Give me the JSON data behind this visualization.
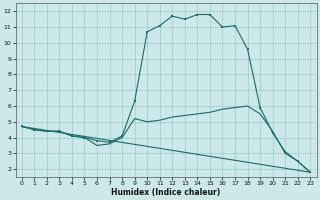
{
  "title": "",
  "xlabel": "Humidex (Indice chaleur)",
  "bg_color": "#cce8e8",
  "grid_color": "#99cccc",
  "line_color": "#1a6b6b",
  "xlim": [
    -0.5,
    23.5
  ],
  "ylim": [
    1.5,
    12.5
  ],
  "yticks": [
    2,
    3,
    4,
    5,
    6,
    7,
    8,
    9,
    10,
    11,
    12
  ],
  "xticks": [
    0,
    1,
    2,
    3,
    4,
    5,
    6,
    7,
    8,
    9,
    10,
    11,
    12,
    13,
    14,
    15,
    16,
    17,
    18,
    19,
    20,
    21,
    22,
    23
  ],
  "curve1_x": [
    0,
    1,
    2,
    3,
    4,
    5,
    6,
    7,
    8,
    9,
    10,
    11,
    12,
    13,
    14,
    15,
    16,
    17,
    18,
    19,
    20,
    21,
    22,
    23
  ],
  "curve1_y": [
    4.7,
    4.5,
    4.4,
    4.4,
    4.1,
    4.0,
    3.8,
    3.7,
    4.1,
    6.3,
    10.7,
    11.1,
    11.7,
    11.5,
    11.8,
    11.8,
    11.0,
    11.1,
    9.6,
    5.9,
    4.3,
    3.1,
    2.5,
    1.8
  ],
  "curve2_x": [
    0,
    1,
    2,
    3,
    4,
    5,
    6,
    7,
    8,
    9,
    10,
    11,
    12,
    13,
    14,
    15,
    16,
    17,
    18,
    19,
    20,
    21,
    22,
    23
  ],
  "curve2_y": [
    4.7,
    4.5,
    4.4,
    4.4,
    4.1,
    4.0,
    3.5,
    3.6,
    4.0,
    5.2,
    5.0,
    5.1,
    5.3,
    5.4,
    5.5,
    5.6,
    5.8,
    5.9,
    6.0,
    5.5,
    4.4,
    3.0,
    2.5,
    1.8
  ],
  "curve3_x": [
    0,
    23
  ],
  "curve3_y": [
    4.7,
    1.8
  ],
  "marker_x": [
    0,
    1,
    2,
    3,
    4,
    5,
    6,
    7,
    8,
    9,
    10,
    11,
    12,
    13,
    14,
    15,
    16,
    17,
    18,
    19,
    20,
    21,
    22,
    23
  ],
  "marker_y": [
    4.7,
    4.5,
    4.4,
    4.4,
    4.1,
    4.0,
    3.8,
    3.7,
    4.1,
    6.3,
    10.7,
    11.1,
    11.7,
    11.5,
    11.8,
    11.8,
    11.0,
    11.1,
    9.6,
    5.9,
    4.3,
    3.1,
    2.5,
    1.8
  ]
}
